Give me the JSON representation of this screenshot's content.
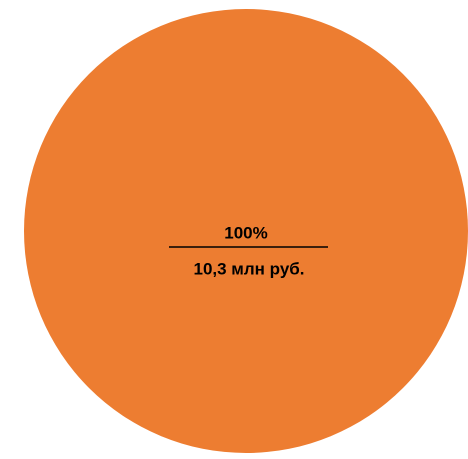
{
  "chart_data": {
    "type": "pie",
    "values": [
      100
    ],
    "value_labels": [
      "100%"
    ],
    "amounts": [
      10.3
    ],
    "amount_labels": [
      "10,3 млн руб."
    ],
    "colors": [
      "#ed7d31"
    ]
  }
}
